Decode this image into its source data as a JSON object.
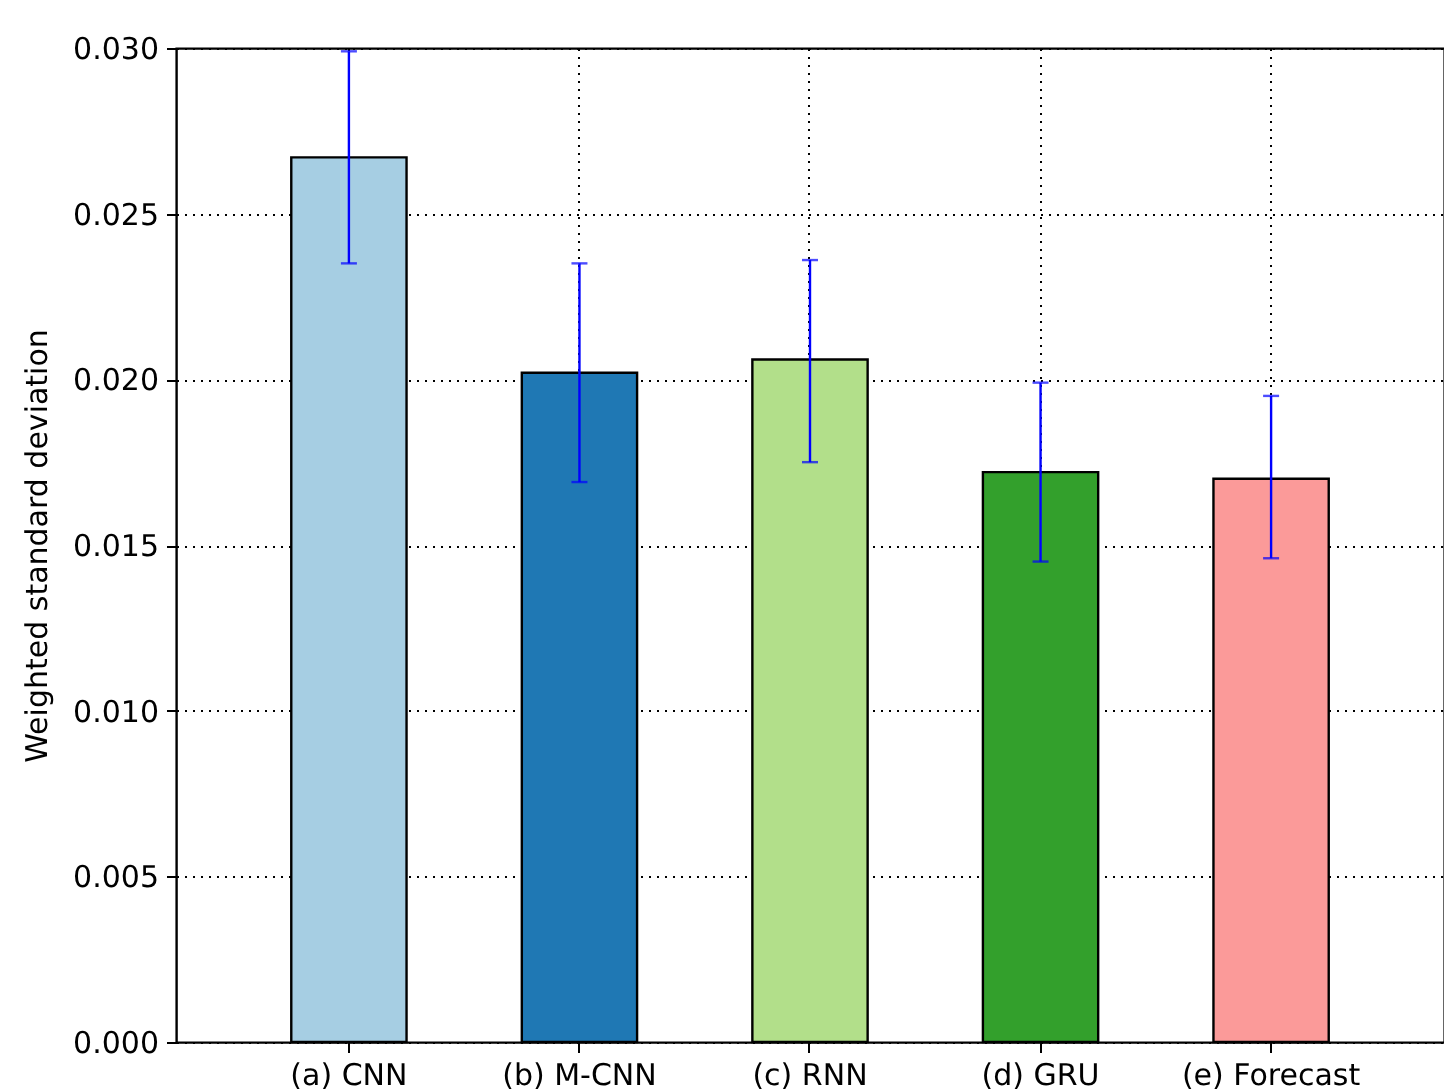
{
  "chart_data": {
    "type": "bar",
    "ylabel": "Weighted standard deviation",
    "categories": [
      "(a) CNN",
      "(b) M-CNN",
      "(c) RNN",
      "(d) GRU",
      "(e) Forecast"
    ],
    "values": [
      0.0267,
      0.0202,
      0.0206,
      0.0172,
      0.017
    ],
    "colors": [
      "#a6cee3",
      "#1f78b4",
      "#b2df8a",
      "#33a02c",
      "#fb9a99"
    ],
    "errors": [
      [
        0.0235,
        0.0299
      ],
      [
        0.0169,
        0.0235
      ],
      [
        0.0175,
        0.0236
      ],
      [
        0.0145,
        0.0199
      ],
      [
        0.0146,
        0.0195
      ]
    ],
    "ylim": [
      0,
      0.03
    ],
    "yticks": [
      {
        "value": 0,
        "label": "0.000"
      },
      {
        "value": 0.005,
        "label": "0.005"
      },
      {
        "value": 0.01,
        "label": "0.010"
      },
      {
        "value": 0.015,
        "label": "0.015"
      },
      {
        "value": 0.02,
        "label": "0.020"
      },
      {
        "value": 0.025,
        "label": "0.025"
      },
      {
        "value": 0.03,
        "label": "0.030"
      }
    ],
    "grid": true
  }
}
